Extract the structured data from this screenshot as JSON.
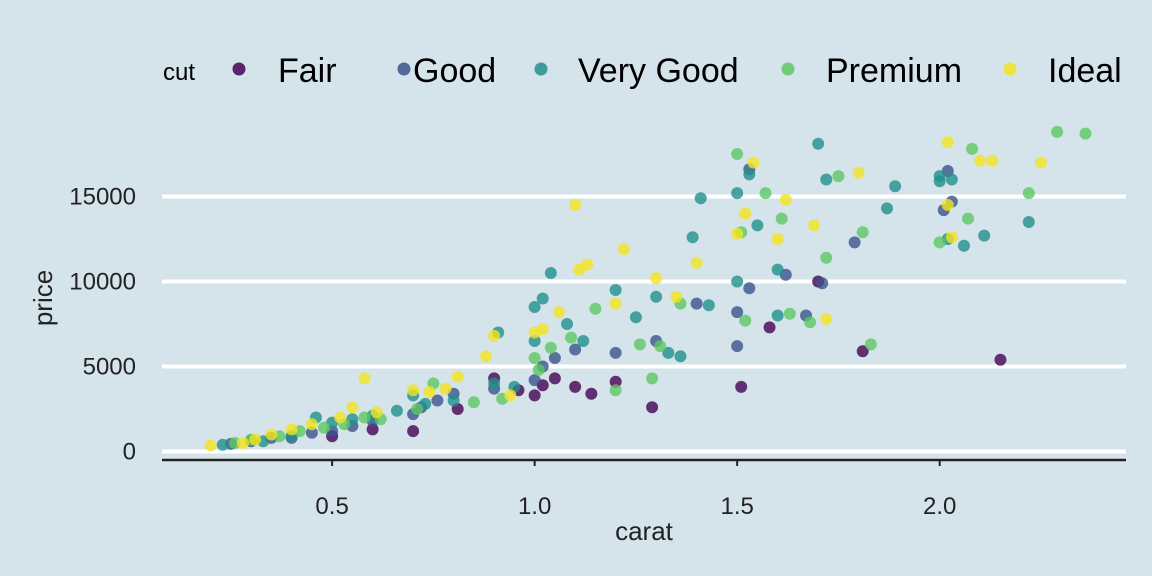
{
  "chart_data": {
    "type": "scatter",
    "xlabel": "carat",
    "ylabel": "price",
    "xlim": [
      0.08,
      2.46
    ],
    "ylim": [
      -500,
      19500
    ],
    "xticks": [
      0.5,
      1.0,
      1.5,
      2.0
    ],
    "xtick_labels": [
      "0.5",
      "1.0",
      "1.5",
      "2.0"
    ],
    "yticks": [
      0,
      5000,
      10000,
      15000
    ],
    "ytick_labels": [
      "0",
      "5000",
      "10000",
      "15000"
    ],
    "grid": "horizontal major lines only",
    "legend": {
      "title": "cut",
      "position": "top",
      "entries": [
        "Fair",
        "Good",
        "Very Good",
        "Premium",
        "Ideal"
      ]
    },
    "colors": {
      "Fair": "#440154",
      "Good": "#3b528b",
      "Very Good": "#21908c",
      "Premium": "#5dc863",
      "Ideal": "#f2e420",
      "background": "#d5e4eb",
      "gridline": "#ffffff",
      "axis_line": "#222222"
    },
    "series": [
      {
        "name": "Fair",
        "points": [
          [
            0.7,
            1200
          ],
          [
            0.9,
            4300
          ],
          [
            0.96,
            3600
          ],
          [
            1.0,
            3300
          ],
          [
            1.02,
            3900
          ],
          [
            1.05,
            4300
          ],
          [
            1.1,
            3800
          ],
          [
            1.14,
            3400
          ],
          [
            1.2,
            4100
          ],
          [
            1.29,
            2600
          ],
          [
            1.51,
            3800
          ],
          [
            1.58,
            7300
          ],
          [
            1.7,
            10000
          ],
          [
            1.81,
            5900
          ],
          [
            2.15,
            5400
          ],
          [
            0.81,
            2500
          ],
          [
            0.6,
            1300
          ],
          [
            0.5,
            900
          ]
        ]
      },
      {
        "name": "Good",
        "points": [
          [
            0.25,
            450
          ],
          [
            0.3,
            600
          ],
          [
            0.35,
            800
          ],
          [
            0.4,
            800
          ],
          [
            0.45,
            1100
          ],
          [
            0.5,
            1200
          ],
          [
            0.55,
            1500
          ],
          [
            0.6,
            1800
          ],
          [
            0.7,
            2200
          ],
          [
            0.72,
            2600
          ],
          [
            0.76,
            3000
          ],
          [
            0.8,
            3400
          ],
          [
            0.9,
            3700
          ],
          [
            1.0,
            4200
          ],
          [
            1.02,
            5000
          ],
          [
            1.05,
            5500
          ],
          [
            1.1,
            6000
          ],
          [
            1.2,
            5800
          ],
          [
            1.3,
            6500
          ],
          [
            1.4,
            8700
          ],
          [
            1.5,
            6200
          ],
          [
            1.5,
            8200
          ],
          [
            1.53,
            9600
          ],
          [
            1.62,
            10400
          ],
          [
            1.67,
            8000
          ],
          [
            1.71,
            9900
          ],
          [
            1.79,
            12300
          ],
          [
            2.01,
            14200
          ],
          [
            2.02,
            16500
          ],
          [
            2.03,
            14700
          ],
          [
            1.53,
            16600
          ]
        ]
      },
      {
        "name": "Very Good",
        "points": [
          [
            0.23,
            400
          ],
          [
            0.3,
            650
          ],
          [
            0.33,
            600
          ],
          [
            0.4,
            900
          ],
          [
            0.46,
            2000
          ],
          [
            0.5,
            1700
          ],
          [
            0.55,
            1900
          ],
          [
            0.6,
            2100
          ],
          [
            0.66,
            2400
          ],
          [
            0.7,
            3300
          ],
          [
            0.73,
            2800
          ],
          [
            0.8,
            3000
          ],
          [
            0.9,
            4000
          ],
          [
            0.91,
            7000
          ],
          [
            0.95,
            3800
          ],
          [
            1.0,
            6500
          ],
          [
            1.0,
            8500
          ],
          [
            1.02,
            9000
          ],
          [
            1.04,
            10500
          ],
          [
            1.08,
            7500
          ],
          [
            1.12,
            6500
          ],
          [
            1.2,
            9500
          ],
          [
            1.25,
            7900
          ],
          [
            1.3,
            9100
          ],
          [
            1.33,
            5800
          ],
          [
            1.36,
            5600
          ],
          [
            1.39,
            12600
          ],
          [
            1.41,
            14900
          ],
          [
            1.43,
            8600
          ],
          [
            1.5,
            10000
          ],
          [
            1.5,
            15200
          ],
          [
            1.53,
            16300
          ],
          [
            1.55,
            13300
          ],
          [
            1.6,
            10700
          ],
          [
            1.6,
            8000
          ],
          [
            1.7,
            18100
          ],
          [
            1.72,
            16000
          ],
          [
            1.87,
            14300
          ],
          [
            1.89,
            15600
          ],
          [
            2.0,
            16200
          ],
          [
            2.0,
            15900
          ],
          [
            2.02,
            12500
          ],
          [
            2.03,
            16000
          ],
          [
            2.06,
            12100
          ],
          [
            2.11,
            12700
          ],
          [
            2.22,
            13500
          ]
        ]
      },
      {
        "name": "Premium",
        "points": [
          [
            0.26,
            500
          ],
          [
            0.3,
            700
          ],
          [
            0.37,
            900
          ],
          [
            0.42,
            1200
          ],
          [
            0.48,
            1400
          ],
          [
            0.53,
            1600
          ],
          [
            0.58,
            2000
          ],
          [
            0.62,
            1900
          ],
          [
            0.71,
            2500
          ],
          [
            0.75,
            4000
          ],
          [
            0.85,
            2900
          ],
          [
            0.92,
            3100
          ],
          [
            1.0,
            5500
          ],
          [
            1.01,
            4800
          ],
          [
            1.04,
            6100
          ],
          [
            1.09,
            6700
          ],
          [
            1.15,
            8400
          ],
          [
            1.2,
            3600
          ],
          [
            1.26,
            6300
          ],
          [
            1.29,
            4300
          ],
          [
            1.31,
            6200
          ],
          [
            1.36,
            8700
          ],
          [
            1.5,
            17500
          ],
          [
            1.51,
            12900
          ],
          [
            1.52,
            7700
          ],
          [
            1.57,
            15200
          ],
          [
            1.61,
            13700
          ],
          [
            1.63,
            8100
          ],
          [
            1.68,
            7600
          ],
          [
            1.72,
            11400
          ],
          [
            1.75,
            16200
          ],
          [
            1.81,
            12900
          ],
          [
            1.83,
            6300
          ],
          [
            2.0,
            12300
          ],
          [
            2.07,
            13700
          ],
          [
            2.08,
            17800
          ],
          [
            2.22,
            15200
          ],
          [
            2.29,
            18800
          ],
          [
            2.36,
            18700
          ]
        ]
      },
      {
        "name": "Ideal",
        "points": [
          [
            0.2,
            350
          ],
          [
            0.28,
            500
          ],
          [
            0.31,
            700
          ],
          [
            0.35,
            1000
          ],
          [
            0.4,
            1300
          ],
          [
            0.45,
            1600
          ],
          [
            0.52,
            2000
          ],
          [
            0.55,
            2600
          ],
          [
            0.58,
            4300
          ],
          [
            0.61,
            2300
          ],
          [
            0.7,
            3600
          ],
          [
            0.74,
            3500
          ],
          [
            0.78,
            3700
          ],
          [
            0.81,
            4400
          ],
          [
            0.88,
            5600
          ],
          [
            0.9,
            6800
          ],
          [
            0.94,
            3300
          ],
          [
            1.0,
            7000
          ],
          [
            1.02,
            7200
          ],
          [
            1.06,
            8200
          ],
          [
            1.1,
            14500
          ],
          [
            1.11,
            10700
          ],
          [
            1.13,
            11000
          ],
          [
            1.2,
            8700
          ],
          [
            1.22,
            11900
          ],
          [
            1.3,
            10200
          ],
          [
            1.35,
            9100
          ],
          [
            1.4,
            11100
          ],
          [
            1.5,
            12800
          ],
          [
            1.52,
            14000
          ],
          [
            1.54,
            17000
          ],
          [
            1.6,
            12500
          ],
          [
            1.62,
            14800
          ],
          [
            1.69,
            13300
          ],
          [
            1.72,
            7800
          ],
          [
            1.8,
            16400
          ],
          [
            2.02,
            18200
          ],
          [
            2.02,
            14500
          ],
          [
            2.03,
            12600
          ],
          [
            2.1,
            17100
          ],
          [
            2.13,
            17100
          ],
          [
            2.25,
            17000
          ]
        ]
      }
    ]
  }
}
